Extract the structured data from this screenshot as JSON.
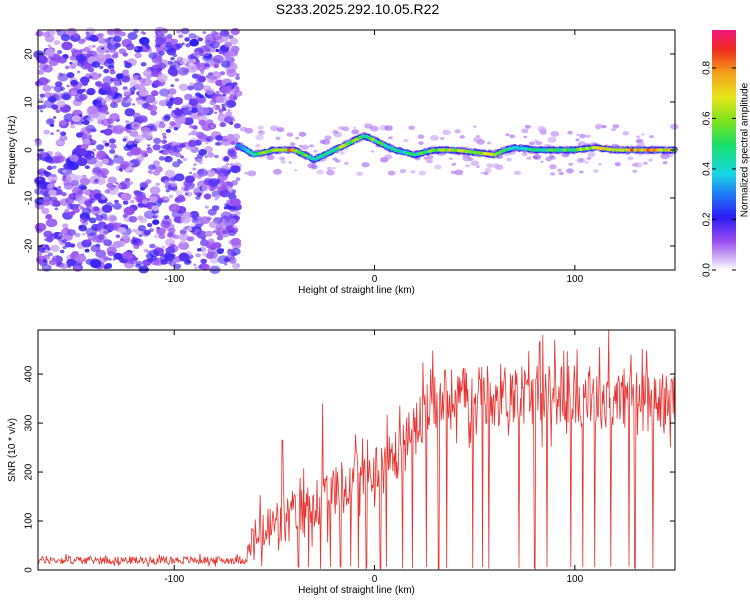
{
  "title": "S233.2025.292.10.05.R22",
  "colors": {
    "snr_line": "#e8322e",
    "noise_purple": "#8a3cf0",
    "axis": "#000000"
  },
  "colorbar": {
    "label": "Normalized spectral amplitude",
    "range": [
      0.0,
      0.95
    ],
    "ticks": [
      0.0,
      0.2,
      0.4,
      0.6,
      0.8
    ],
    "tick_labels": [
      "0.0",
      "0.2",
      "0.4",
      "0.6",
      "0.8"
    ]
  },
  "chart_data": [
    {
      "type": "heatmap",
      "title": "S233.2025.292.10.05.R22",
      "xlabel": "Height of straight line (km)",
      "ylabel": "Frequency (Hz)",
      "xlim": [
        -168,
        150
      ],
      "ylim": [
        -25,
        25
      ],
      "xticks": [
        -100,
        0,
        100
      ],
      "xtick_labels": [
        "-100",
        "0",
        "100"
      ],
      "yticks": [
        -20,
        -10,
        0,
        10,
        20
      ],
      "ytick_labels": [
        "-20",
        "-10",
        "0",
        "10",
        "20"
      ],
      "noise_region_x": [
        -168,
        -68
      ],
      "signal_onset_x": -68,
      "ridge": {
        "x": [
          -68,
          -60,
          -50,
          -40,
          -35,
          -30,
          -25,
          -20,
          -15,
          -10,
          -5,
          0,
          5,
          10,
          20,
          30,
          40,
          50,
          60,
          65,
          70,
          80,
          90,
          100,
          110,
          120,
          130,
          140,
          150
        ],
        "freq": [
          1,
          -1,
          0,
          0,
          -1,
          -2,
          -1,
          0,
          1,
          2,
          3,
          2,
          1,
          0,
          -1,
          0,
          0,
          -0.5,
          -1,
          0,
          0.5,
          0,
          0,
          0,
          0.5,
          0,
          0,
          0,
          0
        ],
        "amplitude": [
          0.4,
          0.55,
          0.7,
          0.85,
          0.6,
          0.5,
          0.55,
          0.6,
          0.65,
          0.6,
          0.55,
          0.6,
          0.5,
          0.45,
          0.55,
          0.6,
          0.75,
          0.6,
          0.8,
          0.5,
          0.45,
          0.5,
          0.55,
          0.6,
          0.8,
          0.75,
          0.85,
          0.8,
          0.75
        ]
      }
    },
    {
      "type": "line",
      "xlabel": "Height of straight line (km)",
      "ylabel": "SNR (10 * v/v)",
      "xlim": [
        -168,
        150
      ],
      "ylim": [
        0,
        490
      ],
      "xticks": [
        -100,
        0,
        100
      ],
      "xtick_labels": [
        "-100",
        "0",
        "100"
      ],
      "yticks": [
        0,
        100,
        200,
        300,
        400
      ],
      "ytick_labels": [
        "0",
        "100",
        "200",
        "300",
        "400"
      ],
      "series": [
        {
          "name": "SNR",
          "trend_x": [
            -168,
            -100,
            -65,
            -60,
            -50,
            -40,
            -30,
            -20,
            -10,
            0,
            10,
            20,
            25,
            30,
            40,
            60,
            80,
            100,
            120,
            140,
            150
          ],
          "trend_y": [
            20,
            20,
            20,
            60,
            90,
            110,
            130,
            160,
            180,
            200,
            230,
            280,
            320,
            340,
            350,
            360,
            360,
            355,
            350,
            345,
            340
          ],
          "noise_amplitude": [
            10,
            10,
            10,
            60,
            70,
            70,
            70,
            70,
            70,
            70,
            75,
            80,
            80,
            80,
            80,
            80,
            80,
            80,
            80,
            80,
            80
          ],
          "dropout_x": [
            -38,
            -33,
            -27,
            -22,
            -17,
            -12,
            -8,
            -4,
            3,
            6,
            14,
            19,
            26,
            32,
            36,
            49,
            54,
            57,
            72,
            80,
            86,
            98,
            104,
            110,
            118,
            127,
            130,
            139
          ],
          "spike_x": [
            -46,
            -26,
            28,
            84,
            90,
            117,
            128
          ],
          "spike_y": [
            265,
            340,
            410,
            480,
            470,
            490,
            440
          ]
        }
      ]
    }
  ]
}
